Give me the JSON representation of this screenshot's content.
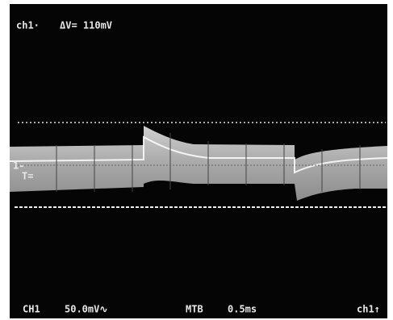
{
  "readout": {
    "channel": "ch1·",
    "delta": "ΔV= 110mV"
  },
  "markers": {
    "level": "1-",
    "trigger": "T="
  },
  "footer": {
    "channel": "CH1",
    "scale": "50.0mV∿",
    "timebase_label": "MTB",
    "timebase": "0.5ms",
    "trigger_source": "ch1↑"
  }
}
